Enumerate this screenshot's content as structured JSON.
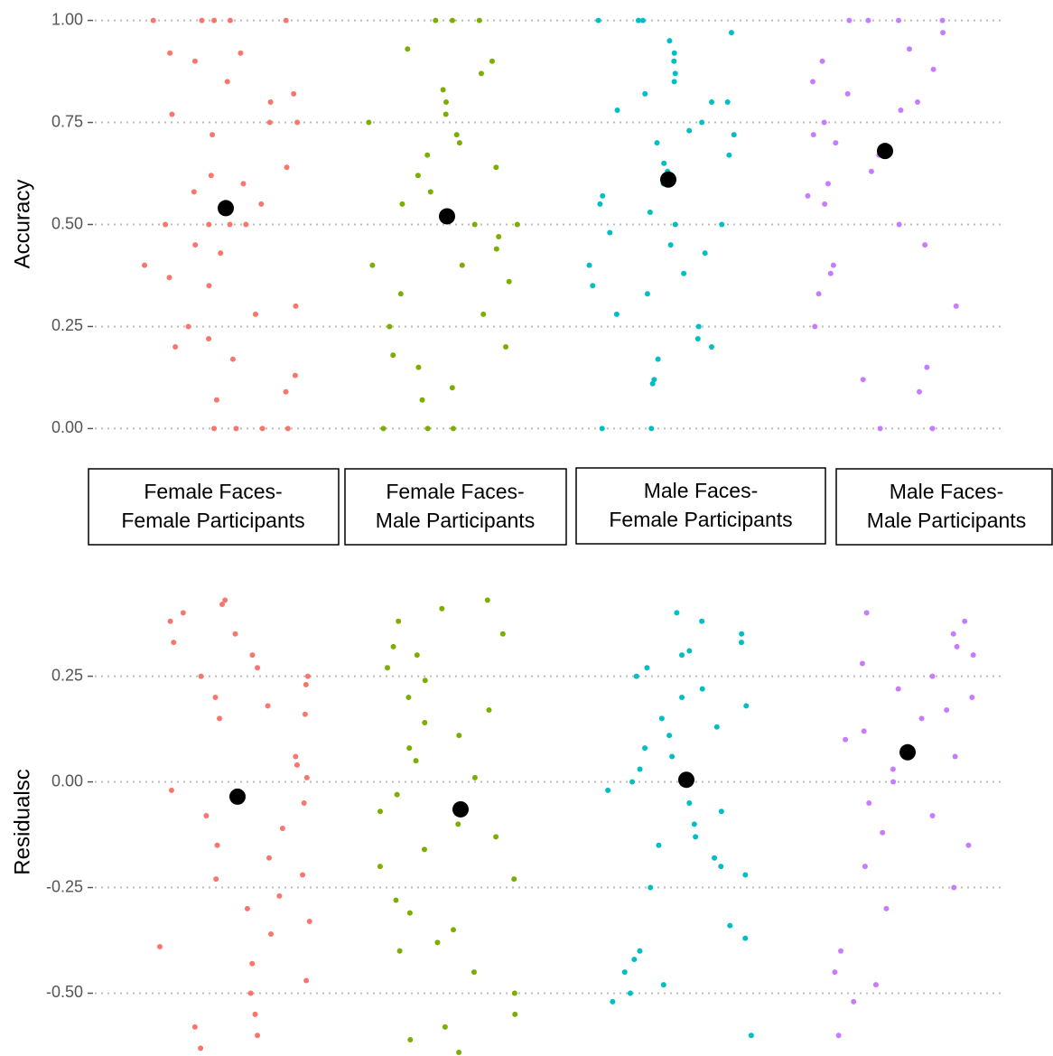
{
  "chart_data": {
    "type": "strip",
    "categories": [
      [
        "Female Faces-",
        "Female Participants"
      ],
      [
        "Female Faces-",
        "Male Participants"
      ],
      [
        "Male Faces-",
        "Female Participants"
      ],
      [
        "Male Faces-",
        "Male Participants"
      ]
    ],
    "mean_color": "#000000",
    "grid": true,
    "panels": [
      {
        "ylabel": "Accuracy",
        "ylim": [
          -0.05,
          1.05
        ],
        "yticks": [
          {
            "value": 0,
            "label": "0.00"
          },
          0.25,
          {
            "value": 0.5,
            "label": "0.50"
          },
          0.75,
          {
            "value": 1,
            "label": "1.00"
          }
        ],
        "series": [
          {
            "color": "#F8766D",
            "mean": 0.54,
            "values": [
              1,
              1,
              1,
              1,
              1,
              0.92,
              0.92,
              0.9,
              0.85,
              0.82,
              0.8,
              0.77,
              0.75,
              0.75,
              0.72,
              0.64,
              0.62,
              0.6,
              0.58,
              0.55,
              0.5,
              0.5,
              0.5,
              0.5,
              0.45,
              0.43,
              0.4,
              0.37,
              0.35,
              0.3,
              0.28,
              0.25,
              0.22,
              0.2,
              0.17,
              0.13,
              0.09,
              0.07,
              0,
              0,
              0,
              0
            ]
          },
          {
            "color": "#7CAE00",
            "mean": 0.52,
            "values": [
              1,
              1,
              1,
              0.93,
              0.9,
              0.87,
              0.83,
              0.8,
              0.77,
              0.75,
              0.72,
              0.7,
              0.67,
              0.64,
              0.62,
              0.58,
              0.55,
              0.5,
              0.5,
              0.47,
              0.44,
              0.4,
              0.4,
              0.36,
              0.33,
              0.28,
              0.25,
              0.2,
              0.18,
              0.15,
              0.1,
              0.07,
              0,
              0,
              0
            ]
          },
          {
            "color": "#00BFC4",
            "mean": 0.61,
            "values": [
              1,
              1,
              1,
              0.97,
              0.95,
              0.92,
              0.9,
              0.87,
              0.85,
              0.82,
              0.8,
              0.8,
              0.78,
              0.75,
              0.73,
              0.72,
              0.7,
              0.67,
              0.65,
              0.63,
              0.6,
              0.57,
              0.55,
              0.53,
              0.5,
              0.5,
              0.48,
              0.45,
              0.43,
              0.4,
              0.38,
              0.35,
              0.33,
              0.28,
              0.25,
              0.22,
              0.2,
              0.17,
              0.12,
              0.11,
              0,
              0
            ]
          },
          {
            "color": "#C77CFF",
            "mean": 0.68,
            "values": [
              1,
              1,
              1,
              1,
              0.97,
              0.93,
              0.9,
              0.88,
              0.85,
              0.82,
              0.8,
              0.78,
              0.75,
              0.72,
              0.7,
              0.67,
              0.63,
              0.6,
              0.57,
              0.55,
              0.5,
              0.45,
              0.4,
              0.38,
              0.33,
              0.3,
              0.25,
              0.15,
              0.12,
              0.09,
              0,
              0
            ]
          }
        ]
      },
      {
        "ylabel": "Residualsc",
        "ylim": [
          -0.64,
          0.45
        ],
        "yticks": [
          {
            "value": -0.5,
            "label": "-0.50"
          },
          -0.25,
          {
            "value": 0,
            "label": "0.00"
          },
          0.25
        ],
        "series": [
          {
            "color": "#F8766D",
            "mean": -0.035,
            "values": [
              0.43,
              0.42,
              0.4,
              0.38,
              0.35,
              0.33,
              0.3,
              0.27,
              0.25,
              0.25,
              0.23,
              0.2,
              0.18,
              0.16,
              0.15,
              0.06,
              0.04,
              0.01,
              -0.02,
              -0.05,
              -0.08,
              -0.11,
              -0.15,
              -0.18,
              -0.22,
              -0.23,
              -0.27,
              -0.3,
              -0.33,
              -0.36,
              -0.39,
              -0.43,
              -0.47,
              -0.5,
              -0.55,
              -0.58,
              -0.6,
              -0.63
            ]
          },
          {
            "color": "#7CAE00",
            "mean": -0.065,
            "values": [
              0.43,
              0.41,
              0.38,
              0.35,
              0.32,
              0.3,
              0.27,
              0.24,
              0.2,
              0.17,
              0.14,
              0.11,
              0.08,
              0.05,
              0.01,
              -0.03,
              -0.07,
              -0.1,
              -0.13,
              -0.16,
              -0.2,
              -0.23,
              -0.28,
              -0.31,
              -0.35,
              -0.38,
              -0.4,
              -0.45,
              -0.5,
              -0.55,
              -0.58,
              -0.61,
              -0.64
            ]
          },
          {
            "color": "#00BFC4",
            "mean": 0.005,
            "values": [
              0.4,
              0.38,
              0.35,
              0.33,
              0.31,
              0.3,
              0.27,
              0.25,
              0.22,
              0.2,
              0.18,
              0.15,
              0.13,
              0.11,
              0.08,
              0.06,
              0.03,
              0,
              -0.02,
              -0.05,
              -0.07,
              -0.1,
              -0.13,
              -0.15,
              -0.18,
              -0.2,
              -0.22,
              -0.25,
              -0.34,
              -0.37,
              -0.4,
              -0.42,
              -0.45,
              -0.48,
              -0.5,
              -0.52,
              -0.6
            ]
          },
          {
            "color": "#C77CFF",
            "mean": 0.07,
            "values": [
              0.4,
              0.38,
              0.35,
              0.32,
              0.3,
              0.28,
              0.25,
              0.22,
              0.2,
              0.17,
              0.15,
              0.12,
              0.1,
              0.06,
              0.03,
              0,
              -0.05,
              -0.08,
              -0.12,
              -0.15,
              -0.2,
              -0.25,
              -0.3,
              -0.4,
              -0.45,
              -0.48,
              -0.52,
              -0.6
            ]
          }
        ]
      }
    ]
  }
}
